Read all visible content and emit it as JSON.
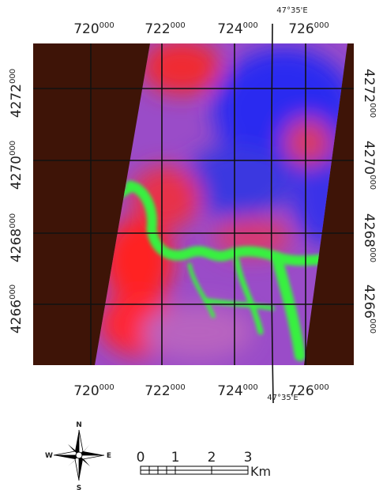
{
  "map": {
    "grid_x_labels": [
      {
        "main": "720",
        "sup": "000"
      },
      {
        "main": "722",
        "sup": "000"
      },
      {
        "main": "724",
        "sup": "000"
      },
      {
        "main": "726",
        "sup": "000"
      }
    ],
    "grid_y_labels": [
      {
        "main": "4272",
        "sup": "000"
      },
      {
        "main": "4270",
        "sup": "000"
      },
      {
        "main": "4268",
        "sup": "000"
      },
      {
        "main": "4266",
        "sup": "000"
      }
    ],
    "longitude_labels": [
      "47°35'E",
      "47°35'E"
    ],
    "compass": {
      "n": "N",
      "e": "E",
      "s": "S",
      "w": "W"
    },
    "scale": {
      "ticks": [
        "0",
        "1",
        "2",
        "3"
      ],
      "unit": "Km"
    }
  }
}
